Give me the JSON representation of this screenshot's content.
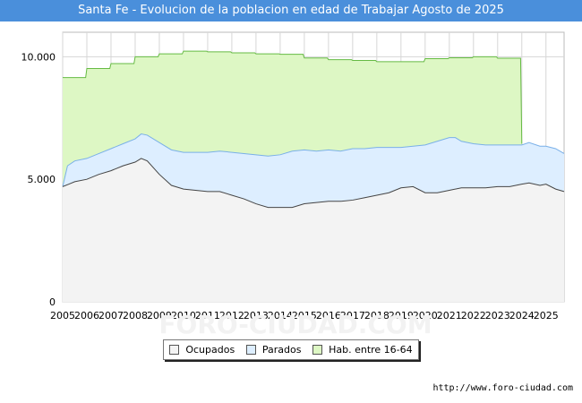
{
  "chart_data": {
    "type": "area",
    "title": "Santa Fe - Evolucion de la poblacion en edad de Trabajar Agosto de 2025",
    "xlabel": "",
    "ylabel": "",
    "xlim": [
      2005,
      2025.75
    ],
    "ylim": [
      0,
      11000
    ],
    "grid": true,
    "y_ticks": [
      {
        "value": 0,
        "label": "0"
      },
      {
        "value": 5000,
        "label": "5.000"
      },
      {
        "value": 10000,
        "label": "10.000"
      }
    ],
    "x_ticks": [
      "2005",
      "2006",
      "2007",
      "2008",
      "2009",
      "2010",
      "2011",
      "2012",
      "2013",
      "2014",
      "2015",
      "2016",
      "2017",
      "2018",
      "2019",
      "2020",
      "2021",
      "2022",
      "2023",
      "2024",
      "2025"
    ],
    "series": [
      {
        "name": "Hab. entre 16-64",
        "color_fill": "#ddf7c4",
        "color_line": "#66bb44",
        "points": [
          [
            2005.0,
            9150
          ],
          [
            2005.95,
            9150
          ],
          [
            2006.0,
            9520
          ],
          [
            2006.95,
            9520
          ],
          [
            2007.0,
            9720
          ],
          [
            2007.95,
            9720
          ],
          [
            2008.0,
            10000
          ],
          [
            2008.95,
            10000
          ],
          [
            2009.0,
            10120
          ],
          [
            2009.95,
            10120
          ],
          [
            2010.0,
            10230
          ],
          [
            2010.95,
            10230
          ],
          [
            2011.0,
            10200
          ],
          [
            2011.95,
            10200
          ],
          [
            2012.0,
            10160
          ],
          [
            2012.95,
            10160
          ],
          [
            2013.0,
            10120
          ],
          [
            2013.95,
            10120
          ],
          [
            2014.0,
            10100
          ],
          [
            2014.95,
            10100
          ],
          [
            2015.0,
            9950
          ],
          [
            2015.95,
            9950
          ],
          [
            2016.0,
            9880
          ],
          [
            2016.95,
            9880
          ],
          [
            2017.0,
            9850
          ],
          [
            2017.95,
            9850
          ],
          [
            2018.0,
            9800
          ],
          [
            2018.95,
            9800
          ],
          [
            2019.0,
            9800
          ],
          [
            2019.95,
            9800
          ],
          [
            2020.0,
            9920
          ],
          [
            2020.95,
            9920
          ],
          [
            2021.0,
            9960
          ],
          [
            2021.95,
            9960
          ],
          [
            2022.0,
            10000
          ],
          [
            2022.95,
            10000
          ],
          [
            2023.0,
            9940
          ],
          [
            2023.95,
            9940
          ],
          [
            2024.0,
            6450
          ]
        ]
      },
      {
        "name": "Parados",
        "color_fill": "#ddeeff",
        "color_line": "#7ab0e8",
        "points": [
          [
            2005.0,
            4700
          ],
          [
            2005.2,
            5550
          ],
          [
            2005.5,
            5750
          ],
          [
            2006.0,
            5850
          ],
          [
            2006.5,
            6050
          ],
          [
            2007.0,
            6250
          ],
          [
            2007.5,
            6450
          ],
          [
            2008.0,
            6650
          ],
          [
            2008.25,
            6850
          ],
          [
            2008.5,
            6800
          ],
          [
            2009.0,
            6500
          ],
          [
            2009.5,
            6200
          ],
          [
            2010.0,
            6100
          ],
          [
            2010.5,
            6100
          ],
          [
            2011.0,
            6100
          ],
          [
            2011.5,
            6150
          ],
          [
            2012.0,
            6100
          ],
          [
            2012.5,
            6050
          ],
          [
            2013.0,
            6000
          ],
          [
            2013.5,
            5950
          ],
          [
            2014.0,
            6000
          ],
          [
            2014.5,
            6150
          ],
          [
            2015.0,
            6200
          ],
          [
            2015.5,
            6150
          ],
          [
            2016.0,
            6200
          ],
          [
            2016.5,
            6150
          ],
          [
            2017.0,
            6250
          ],
          [
            2017.5,
            6250
          ],
          [
            2018.0,
            6300
          ],
          [
            2018.5,
            6300
          ],
          [
            2019.0,
            6300
          ],
          [
            2019.5,
            6350
          ],
          [
            2020.0,
            6400
          ],
          [
            2020.5,
            6550
          ],
          [
            2021.0,
            6700
          ],
          [
            2021.25,
            6700
          ],
          [
            2021.5,
            6550
          ],
          [
            2022.0,
            6450
          ],
          [
            2022.5,
            6400
          ],
          [
            2023.0,
            6400
          ],
          [
            2023.5,
            6400
          ],
          [
            2024.0,
            6400
          ],
          [
            2024.3,
            6500
          ],
          [
            2024.75,
            6350
          ],
          [
            2025.0,
            6350
          ],
          [
            2025.4,
            6250
          ],
          [
            2025.75,
            6050
          ]
        ]
      },
      {
        "name": "Ocupados",
        "color_fill": "#f3f3f3",
        "color_line": "#444444",
        "points": [
          [
            2005.0,
            4700
          ],
          [
            2005.25,
            4800
          ],
          [
            2005.5,
            4900
          ],
          [
            2006.0,
            5000
          ],
          [
            2006.5,
            5200
          ],
          [
            2007.0,
            5350
          ],
          [
            2007.5,
            5550
          ],
          [
            2008.0,
            5700
          ],
          [
            2008.25,
            5850
          ],
          [
            2008.5,
            5750
          ],
          [
            2009.0,
            5200
          ],
          [
            2009.5,
            4750
          ],
          [
            2010.0,
            4600
          ],
          [
            2010.5,
            4550
          ],
          [
            2011.0,
            4500
          ],
          [
            2011.5,
            4500
          ],
          [
            2012.0,
            4350
          ],
          [
            2012.5,
            4200
          ],
          [
            2013.0,
            4000
          ],
          [
            2013.5,
            3850
          ],
          [
            2014.0,
            3850
          ],
          [
            2014.5,
            3850
          ],
          [
            2015.0,
            4000
          ],
          [
            2015.5,
            4050
          ],
          [
            2016.0,
            4100
          ],
          [
            2016.5,
            4100
          ],
          [
            2017.0,
            4150
          ],
          [
            2017.5,
            4250
          ],
          [
            2018.0,
            4350
          ],
          [
            2018.5,
            4450
          ],
          [
            2019.0,
            4650
          ],
          [
            2019.5,
            4700
          ],
          [
            2020.0,
            4450
          ],
          [
            2020.5,
            4450
          ],
          [
            2021.0,
            4550
          ],
          [
            2021.5,
            4650
          ],
          [
            2022.0,
            4650
          ],
          [
            2022.5,
            4650
          ],
          [
            2023.0,
            4700
          ],
          [
            2023.5,
            4700
          ],
          [
            2024.0,
            4800
          ],
          [
            2024.3,
            4850
          ],
          [
            2024.75,
            4750
          ],
          [
            2025.0,
            4800
          ],
          [
            2025.4,
            4600
          ],
          [
            2025.75,
            4500
          ]
        ]
      }
    ],
    "legend_order": [
      "Ocupados",
      "Parados",
      "Hab. entre 16-64"
    ],
    "legend_position": "bottom-center"
  },
  "source": "http://www.foro-ciudad.com",
  "watermark": "FORO-CIUDAD.COM"
}
